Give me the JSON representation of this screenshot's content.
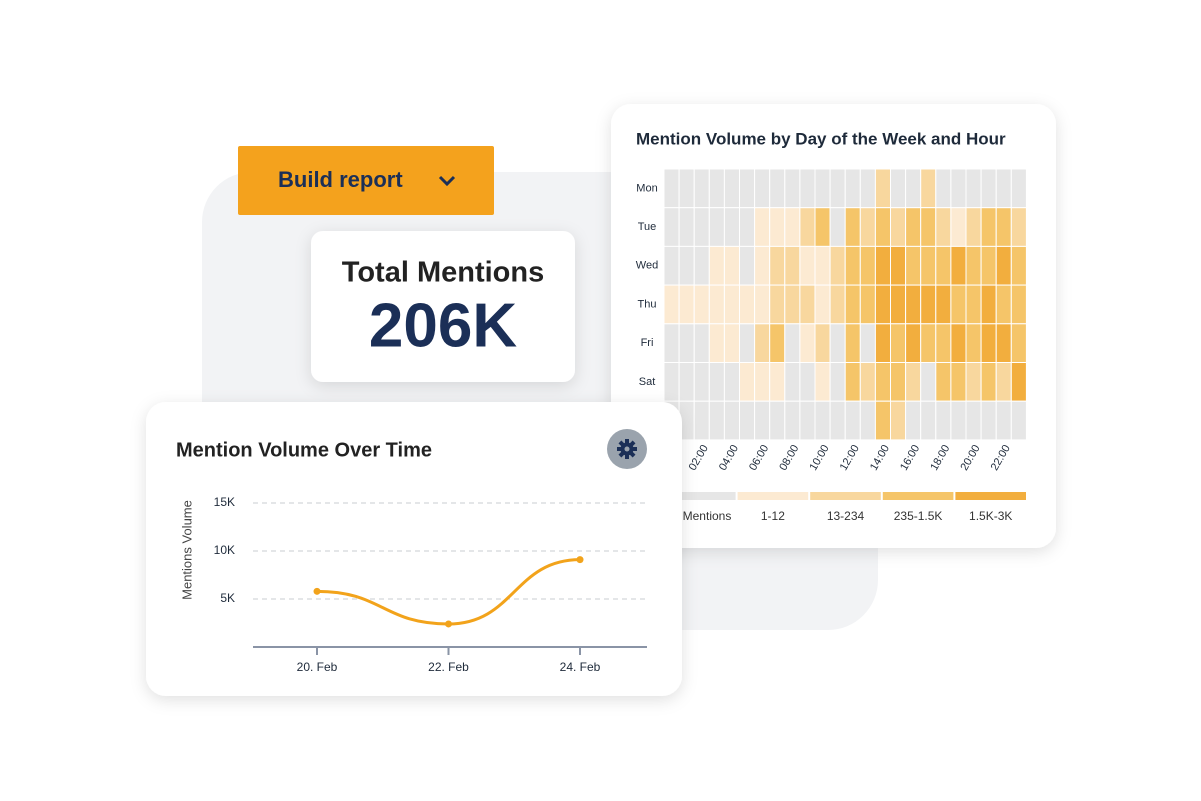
{
  "button": {
    "label": "Build report"
  },
  "kpi": {
    "title": "Total Mentions",
    "value": "206K"
  },
  "heatmap": {
    "type": "heatmap",
    "title": "Mention Volume by Day of the Week and Hour",
    "rows": [
      "Mon",
      "Tue",
      "Wed",
      "Thu",
      "Fri",
      "Sat",
      null
    ],
    "columns": [
      null,
      null,
      "02:00",
      null,
      "04:00",
      null,
      "06:00",
      null,
      "08:00",
      null,
      "10:00",
      null,
      "12:00",
      null,
      "14:00",
      null,
      "16:00",
      null,
      "18:00",
      null,
      "20:00",
      null,
      "22:00",
      null
    ],
    "values": [
      [
        0,
        0,
        0,
        0,
        0,
        0,
        0,
        0,
        0,
        0,
        0,
        0,
        0,
        0,
        2,
        0,
        0,
        2,
        0,
        0,
        0,
        0,
        0,
        0
      ],
      [
        0,
        0,
        0,
        0,
        0,
        0,
        1,
        1,
        1,
        2,
        3,
        0,
        3,
        2,
        3,
        2,
        3,
        3,
        2,
        1,
        2,
        3,
        3,
        2
      ],
      [
        0,
        0,
        0,
        1,
        1,
        0,
        1,
        2,
        2,
        1,
        1,
        2,
        3,
        3,
        4,
        4,
        3,
        3,
        3,
        4,
        3,
        3,
        4,
        3
      ],
      [
        1,
        1,
        1,
        1,
        1,
        1,
        1,
        2,
        2,
        2,
        1,
        2,
        3,
        3,
        4,
        4,
        4,
        4,
        4,
        3,
        3,
        4,
        3,
        3
      ],
      [
        0,
        0,
        0,
        1,
        1,
        0,
        2,
        3,
        0,
        1,
        2,
        0,
        3,
        0,
        4,
        3,
        4,
        3,
        3,
        4,
        3,
        4,
        4,
        3
      ],
      [
        0,
        0,
        0,
        0,
        0,
        1,
        1,
        1,
        0,
        0,
        1,
        0,
        3,
        2,
        3,
        3,
        2,
        0,
        3,
        3,
        2,
        3,
        2,
        4
      ],
      [
        0,
        0,
        0,
        0,
        0,
        0,
        0,
        0,
        0,
        0,
        0,
        0,
        0,
        0,
        3,
        2,
        0,
        0,
        0,
        0,
        0,
        0,
        0,
        0
      ]
    ],
    "legend": [
      {
        "label": "Mentions",
        "color": "#e6e6e6"
      },
      {
        "label": "1-12",
        "color": "#fcead2"
      },
      {
        "label": "13-234",
        "color": "#f8d79e"
      },
      {
        "label": "235-1.5K",
        "color": "#f5c569"
      },
      {
        "label": "1.5K-3K",
        "color": "#f2ae3e"
      }
    ]
  },
  "line_chart": {
    "type": "line",
    "title": "Mention Volume Over Time",
    "y_label": "Mentions Volume",
    "categories": [
      "20. Feb",
      "22. Feb",
      "24. Feb"
    ],
    "values": [
      5800,
      2400,
      9100
    ],
    "color": "#f2a31b",
    "ylim": [
      0,
      15000
    ],
    "yticks": [
      {
        "value": 5000,
        "label": "5K"
      },
      {
        "value": 10000,
        "label": "10K"
      },
      {
        "value": 15000,
        "label": "15K"
      }
    ],
    "grid": true
  }
}
